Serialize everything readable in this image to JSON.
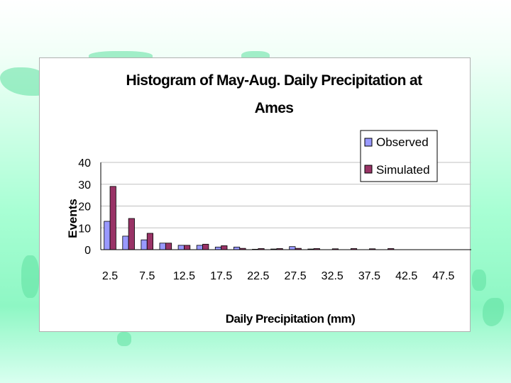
{
  "chart_data": {
    "type": "bar",
    "title_lines": [
      "Histogram of  May-Aug. Daily Precipitation at",
      "Ames"
    ],
    "xlabel": "Daily Precipitation (mm)",
    "ylabel": "Events",
    "ylim": [
      0,
      40
    ],
    "yticks": [
      "0",
      "10",
      "20",
      "30",
      "40"
    ],
    "grid": true,
    "legend_position": "top-right",
    "categories": [
      "2.5",
      "5",
      "7.5",
      "10",
      "12.5",
      "15",
      "17.5",
      "20",
      "22.5",
      "25",
      "27.5",
      "30",
      "32.5",
      "35",
      "37.5",
      "40",
      "42.5",
      "45",
      "47.5",
      "50"
    ],
    "xtick_labels": [
      "2.5",
      "7.5",
      "12.5",
      "17.5",
      "22.5",
      "27.5",
      "32.5",
      "37.5",
      "42.5",
      "47.5"
    ],
    "series": [
      {
        "name": "Observed",
        "color": "#9999ff",
        "values": [
          13,
          6.2,
          4.5,
          3,
          2,
          2,
          1.2,
          1.2,
          0.2,
          0.3,
          1.4,
          0.3,
          0,
          0,
          0,
          0,
          0,
          0,
          0,
          0
        ]
      },
      {
        "name": "Simulated",
        "color": "#993366",
        "values": [
          29,
          14.3,
          7.5,
          3,
          2,
          2.5,
          1.8,
          0.6,
          0.5,
          0.5,
          0.6,
          0.5,
          0.4,
          0.5,
          0.4,
          0.5,
          0,
          0,
          0,
          0
        ]
      }
    ]
  },
  "colors": {
    "background_accent": "#8ef7c4",
    "grid": "#c0c0c0",
    "axis": "#000000"
  }
}
